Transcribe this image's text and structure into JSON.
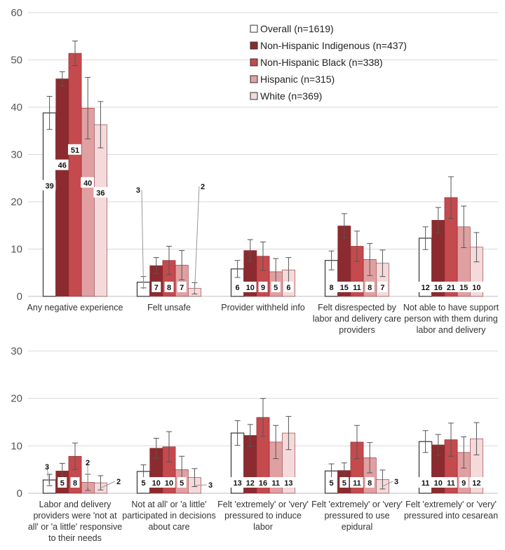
{
  "chart_data": [
    {
      "type": "bar",
      "ylim": [
        0,
        60
      ],
      "yticks": [
        0,
        10,
        20,
        30,
        40,
        50,
        60
      ],
      "grid": true,
      "legend_position": "top-right",
      "categories": [
        [
          "Any negative experience"
        ],
        [
          "Felt unsafe"
        ],
        [
          "Provider withheld info"
        ],
        [
          "Felt disrespected by",
          "labor and delivery care",
          "providers"
        ],
        [
          "Not able to have support",
          "person with them during",
          "labor and delivery"
        ]
      ],
      "series": [
        {
          "name": "Overall (n=1619)",
          "color": "#ffffff",
          "values": [
            38.8,
            3.0,
            5.8,
            7.6,
            12.3
          ],
          "labels": [
            "39",
            "3",
            "6",
            "8",
            "12"
          ],
          "err": [
            3.5,
            1.2,
            1.8,
            2.0,
            2.4
          ]
        },
        {
          "name": "Non-Hispanic Indigenous (n=437)",
          "color": "#8c2b2f",
          "values": [
            46.0,
            6.5,
            9.7,
            14.9,
            16.1
          ],
          "labels": [
            "46",
            "7",
            "10",
            "15",
            "16"
          ],
          "err": [
            1.5,
            1.7,
            2.3,
            2.6,
            2.7
          ]
        },
        {
          "name": "Non-Hispanic Black (n=338)",
          "color": "#c44a4e",
          "values": [
            51.4,
            7.6,
            8.5,
            10.6,
            20.9
          ],
          "labels": [
            "51",
            "8",
            "9",
            "11",
            "21"
          ],
          "err": [
            2.6,
            3.0,
            3.0,
            3.2,
            4.4
          ]
        },
        {
          "name": "Hispanic (n=315)",
          "color": "#e0a0a2",
          "values": [
            39.8,
            6.6,
            5.2,
            7.8,
            14.7
          ],
          "labels": [
            "40",
            "7",
            "5",
            "8",
            "15"
          ],
          "err": [
            6.5,
            3.1,
            2.8,
            3.4,
            4.4
          ]
        },
        {
          "name": "White (n=369)",
          "color": "#f4dada",
          "values": [
            36.3,
            1.7,
            5.6,
            7.0,
            10.4
          ],
          "labels": [
            "36",
            "2",
            "6",
            "7",
            "10"
          ],
          "err": [
            4.9,
            1.2,
            2.6,
            2.8,
            3.1
          ]
        }
      ]
    },
    {
      "type": "bar",
      "ylim": [
        0,
        30
      ],
      "yticks": [
        0,
        10,
        20,
        30
      ],
      "grid": true,
      "categories": [
        [
          "Labor and delivery",
          "providers were 'not at",
          "all' or 'a little' responsive",
          "to their needs"
        ],
        [
          "Not at all' or 'a little'",
          "participated in decisions",
          "about care"
        ],
        [
          "Felt 'extremely' or 'very'",
          "pressured to induce",
          "labor"
        ],
        [
          "Felt 'extremely' or 'very'",
          "pressured to use",
          "epidural"
        ],
        [
          "Felt 'extremely' or 'very'",
          "pressured into cesarean"
        ]
      ],
      "series": [
        {
          "name": "Overall (n=1619)",
          "values": [
            2.8,
            4.6,
            12.7,
            4.7,
            10.9
          ],
          "labels": [
            "3",
            "5",
            "13",
            "5",
            "11"
          ],
          "err": [
            1.2,
            1.4,
            2.6,
            1.5,
            2.3
          ]
        },
        {
          "name": "Non-Hispanic Indigenous (n=437)",
          "values": [
            4.7,
            9.5,
            12.2,
            4.8,
            10.2
          ],
          "labels": [
            "5",
            "10",
            "12",
            "5",
            "10"
          ],
          "err": [
            1.6,
            2.1,
            2.3,
            1.6,
            2.2
          ]
        },
        {
          "name": "Non-Hispanic Black (n=338)",
          "values": [
            7.8,
            9.8,
            16.0,
            10.8,
            11.3
          ],
          "labels": [
            "8",
            "10",
            "16",
            "11",
            "11"
          ],
          "err": [
            2.8,
            3.2,
            4.0,
            3.5,
            3.5
          ]
        },
        {
          "name": "Hispanic (n=315)",
          "values": [
            2.3,
            5.0,
            10.8,
            7.5,
            8.6
          ],
          "labels": [
            "2",
            "5",
            "11",
            "8",
            "9"
          ],
          "err": [
            1.7,
            2.8,
            3.5,
            3.2,
            3.3
          ]
        },
        {
          "name": "White (n=369)",
          "values": [
            2.2,
            3.3,
            12.7,
            2.9,
            11.5
          ],
          "labels": [
            "2",
            "3",
            "13",
            "3",
            "12"
          ],
          "err": [
            1.5,
            1.9,
            3.5,
            2.0,
            3.4
          ]
        }
      ]
    }
  ]
}
